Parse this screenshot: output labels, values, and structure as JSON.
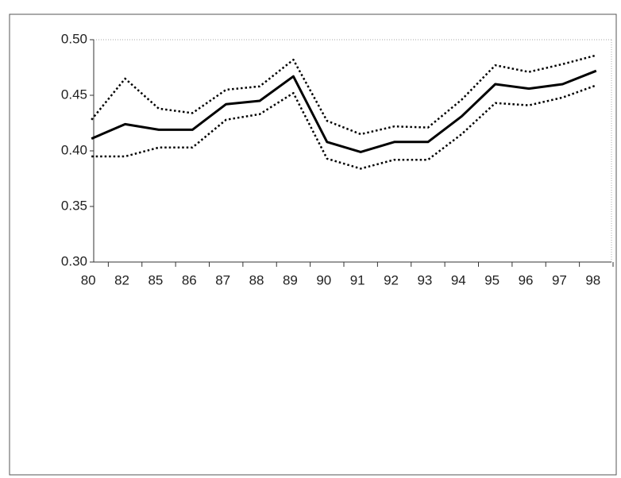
{
  "chart_data": {
    "type": "line",
    "categories": [
      "80",
      "82",
      "85",
      "86",
      "87",
      "88",
      "89",
      "90",
      "91",
      "92",
      "93",
      "94",
      "95",
      "96",
      "97",
      "98"
    ],
    "series": [
      {
        "color": "#000000",
        "style": "solid",
        "values": [
          0.411,
          0.424,
          0.419,
          0.419,
          0.442,
          0.445,
          0.467,
          0.408,
          0.399,
          0.408,
          0.408,
          0.431,
          0.46,
          0.456,
          0.46,
          0.472
        ]
      },
      {
        "color": "#000000",
        "style": "dotted",
        "values": [
          0.428,
          0.465,
          0.438,
          0.434,
          0.455,
          0.458,
          0.482,
          0.427,
          0.415,
          0.422,
          0.421,
          0.446,
          0.477,
          0.471,
          0.478,
          0.486
        ]
      },
      {
        "color": "#000000",
        "style": "dotted",
        "values": [
          0.395,
          0.395,
          0.403,
          0.403,
          0.428,
          0.433,
          0.452,
          0.393,
          0.384,
          0.392,
          0.392,
          0.415,
          0.443,
          0.441,
          0.448,
          0.459
        ]
      }
    ],
    "ylim": [
      0.3,
      0.5
    ],
    "yticks": [
      {
        "value": 0.3,
        "label": "0.30"
      },
      0.35,
      {
        "value": 0.4,
        "label": "0.40"
      },
      0.45,
      {
        "value": 0.5,
        "label": "0.50"
      }
    ],
    "grid": false
  }
}
